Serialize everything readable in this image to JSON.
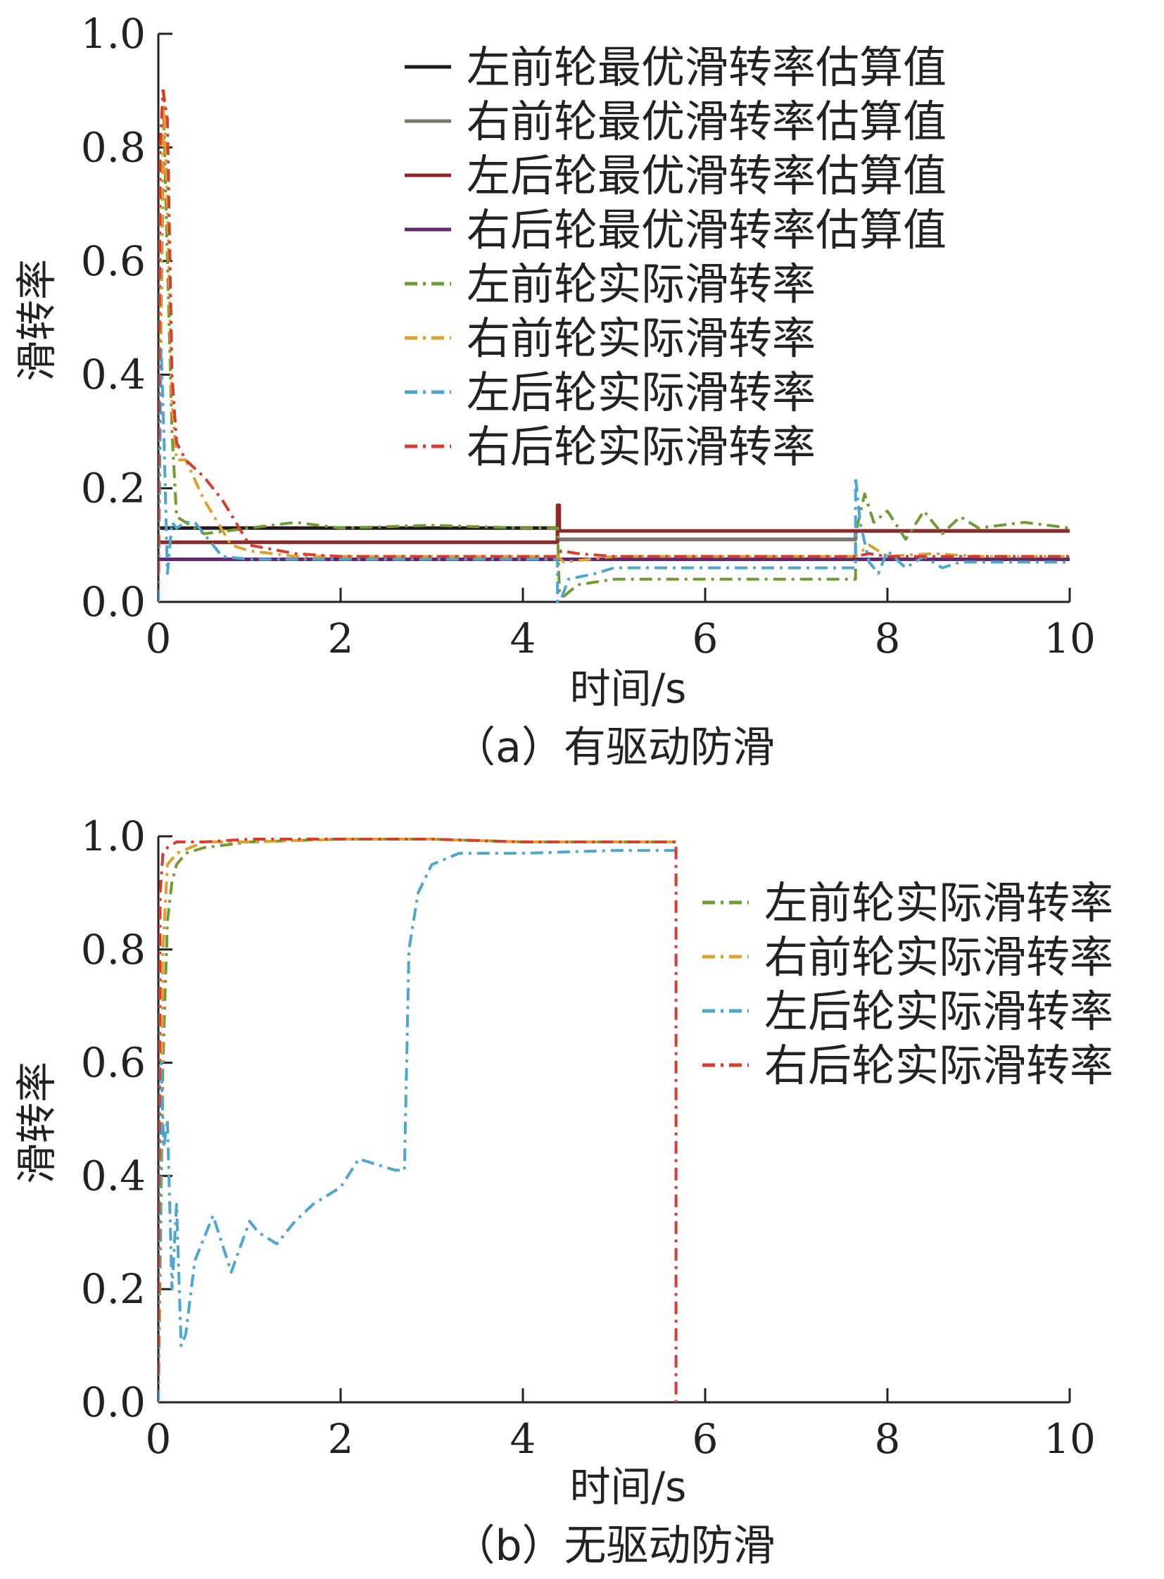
{
  "chart_data": [
    {
      "type": "line",
      "caption": "（a）有驱动防滑",
      "xlabel": "时间/s",
      "ylabel": "滑转率",
      "xlim": [
        0,
        10
      ],
      "ylim": [
        0,
        1.0
      ],
      "xticks": [
        "0",
        "2",
        "4",
        "6",
        "8",
        "10"
      ],
      "yticks": [
        "0.0",
        "0.2",
        "0.4",
        "0.6",
        "0.8",
        "1.0"
      ],
      "legend_position": "top-right",
      "series": [
        {
          "name": "左前轮最优滑转率估算值",
          "style": "solid",
          "color": "#231815",
          "x": [
            0,
            4.38,
            4.38,
            7.65,
            7.65,
            10
          ],
          "y": [
            0.13,
            0.13,
            0.11,
            0.11,
            0.125,
            0.125
          ]
        },
        {
          "name": "右前轮最优滑转率估算值",
          "style": "solid",
          "color": "#7d7770",
          "x": [
            0,
            4.38,
            4.38,
            7.65,
            7.65,
            10
          ],
          "y": [
            0.105,
            0.105,
            0.11,
            0.11,
            0.125,
            0.125
          ]
        },
        {
          "name": "左后轮最优滑转率估算值",
          "style": "solid",
          "color": "#8b2a2a",
          "x": [
            0,
            4.38,
            4.38,
            4.4,
            4.4,
            10
          ],
          "y": [
            0.105,
            0.105,
            0.17,
            0.17,
            0.125,
            0.125
          ]
        },
        {
          "name": "右后轮最优滑转率估算值",
          "style": "solid",
          "color": "#5e2a6a",
          "x": [
            0,
            4.38,
            4.38,
            10
          ],
          "y": [
            0.075,
            0.075,
            0.075,
            0.075
          ]
        },
        {
          "name": "左前轮实际滑转率",
          "style": "dashdot",
          "color": "#6e9b32",
          "x": [
            0,
            0.03,
            0.06,
            0.1,
            0.15,
            0.2,
            0.3,
            0.5,
            1.0,
            1.5,
            2.0,
            3.0,
            4.0,
            4.38,
            4.4,
            4.45,
            4.6,
            5.0,
            6.0,
            7.0,
            7.65,
            7.65,
            7.75,
            7.85,
            8.0,
            8.2,
            8.4,
            8.6,
            8.8,
            9.0,
            9.5,
            10
          ],
          "y": [
            0,
            0.5,
            0.85,
            0.6,
            0.3,
            0.15,
            0.14,
            0.12,
            0.13,
            0.14,
            0.13,
            0.135,
            0.13,
            0.13,
            0.02,
            0.01,
            0.03,
            0.04,
            0.04,
            0.04,
            0.04,
            0.12,
            0.19,
            0.14,
            0.16,
            0.11,
            0.16,
            0.12,
            0.15,
            0.13,
            0.14,
            0.13
          ]
        },
        {
          "name": "右前轮实际滑转率",
          "style": "dashdot",
          "color": "#e0a030",
          "x": [
            0,
            0.03,
            0.06,
            0.1,
            0.15,
            0.2,
            0.3,
            0.5,
            0.8,
            1.0,
            1.5,
            2.0,
            3.0,
            4.38,
            4.45,
            5.0,
            6.0,
            7.65,
            7.8,
            8.0,
            8.5,
            9.0,
            10
          ],
          "y": [
            0,
            0.6,
            0.9,
            0.7,
            0.35,
            0.25,
            0.25,
            0.18,
            0.1,
            0.09,
            0.08,
            0.08,
            0.08,
            0.08,
            0.07,
            0.08,
            0.08,
            0.08,
            0.1,
            0.08,
            0.085,
            0.08,
            0.08
          ]
        },
        {
          "name": "左后轮实际滑转率",
          "style": "dashdot",
          "color": "#4da6cf",
          "x": [
            0,
            0.03,
            0.06,
            0.1,
            0.15,
            0.2,
            0.3,
            0.4,
            0.5,
            0.7,
            1.0,
            2.0,
            3.0,
            4.38,
            4.38,
            4.42,
            4.5,
            4.8,
            5.0,
            6.0,
            7.65,
            7.65,
            7.7,
            7.8,
            7.9,
            8.0,
            8.2,
            8.4,
            8.6,
            8.8,
            9.0,
            10
          ],
          "y": [
            0,
            0.45,
            0.3,
            0.05,
            0.14,
            0.13,
            0.14,
            0.14,
            0.12,
            0.08,
            0.075,
            0.075,
            0.075,
            0.075,
            0.0,
            0.005,
            0.04,
            0.05,
            0.06,
            0.06,
            0.06,
            0.22,
            0.14,
            0.07,
            0.05,
            0.09,
            0.06,
            0.08,
            0.06,
            0.07,
            0.07,
            0.07
          ]
        },
        {
          "name": "右后轮实际滑转率",
          "style": "dashdot",
          "color": "#d93b2e",
          "x": [
            0,
            0.02,
            0.05,
            0.1,
            0.15,
            0.2,
            0.3,
            0.5,
            0.7,
            1.0,
            1.5,
            2.0,
            3.0,
            4.38,
            4.42,
            4.6,
            5.0,
            6.0,
            7.65,
            7.8,
            8.0,
            10
          ],
          "y": [
            0.05,
            0.8,
            0.9,
            0.85,
            0.4,
            0.28,
            0.25,
            0.22,
            0.18,
            0.1,
            0.085,
            0.08,
            0.08,
            0.08,
            0.09,
            0.085,
            0.08,
            0.08,
            0.08,
            0.085,
            0.08,
            0.08
          ]
        }
      ]
    },
    {
      "type": "line",
      "caption": "（b）无驱动防滑",
      "xlabel": "时间/s",
      "ylabel": "滑转率",
      "xlim": [
        0,
        10
      ],
      "ylim": [
        0,
        1.0
      ],
      "xticks": [
        "0",
        "2",
        "4",
        "6",
        "8",
        "10"
      ],
      "yticks": [
        "0.0",
        "0.2",
        "0.4",
        "0.6",
        "0.8",
        "1.0"
      ],
      "legend_position": "right",
      "series": [
        {
          "name": "左前轮实际滑转率",
          "style": "dashdot",
          "color": "#6e9b32",
          "x": [
            0,
            0.05,
            0.1,
            0.15,
            0.2,
            0.3,
            0.5,
            1.0,
            2.0,
            3.0,
            4.0,
            5.0,
            5.68
          ],
          "y": [
            0,
            0.6,
            0.85,
            0.92,
            0.95,
            0.97,
            0.98,
            0.99,
            0.995,
            0.995,
            0.99,
            0.99,
            0.99
          ]
        },
        {
          "name": "右前轮实际滑转率",
          "style": "dashdot",
          "color": "#e0a030",
          "x": [
            0,
            0.05,
            0.1,
            0.2,
            0.5,
            1.0,
            2.0,
            3.0,
            4.0,
            5.0,
            5.68
          ],
          "y": [
            0,
            0.8,
            0.95,
            0.97,
            0.99,
            0.99,
            0.995,
            0.995,
            0.99,
            0.99,
            0.99
          ]
        },
        {
          "name": "左后轮实际滑转率",
          "style": "dashdot",
          "color": "#4da6cf",
          "x": [
            0,
            0.03,
            0.06,
            0.1,
            0.15,
            0.2,
            0.25,
            0.3,
            0.4,
            0.6,
            0.8,
            1.0,
            1.1,
            1.3,
            1.5,
            1.7,
            2.0,
            2.2,
            2.4,
            2.6,
            2.7,
            2.75,
            2.85,
            3.0,
            3.3,
            4.0,
            5.0,
            5.7
          ],
          "y": [
            0,
            0.6,
            0.45,
            0.5,
            0.2,
            0.35,
            0.1,
            0.12,
            0.25,
            0.33,
            0.23,
            0.32,
            0.3,
            0.28,
            0.32,
            0.35,
            0.38,
            0.43,
            0.42,
            0.41,
            0.41,
            0.8,
            0.9,
            0.95,
            0.97,
            0.97,
            0.975,
            0.975
          ]
        },
        {
          "name": "右后轮实际滑转率",
          "style": "dashdot",
          "color": "#d93b2e",
          "x": [
            0,
            0.02,
            0.05,
            0.1,
            0.2,
            0.5,
            1.0,
            2.0,
            3.0,
            4.0,
            5.0,
            5.68,
            5.68
          ],
          "y": [
            0.05,
            0.9,
            0.97,
            0.98,
            0.99,
            0.99,
            0.995,
            0.995,
            0.995,
            0.99,
            0.99,
            0.99,
            0.0
          ]
        }
      ]
    }
  ]
}
